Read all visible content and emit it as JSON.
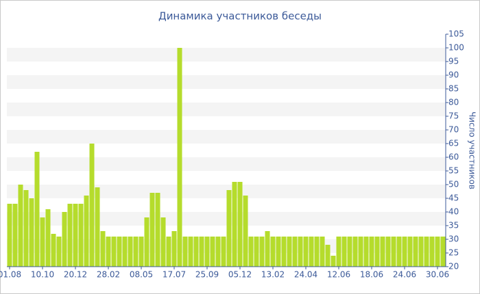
{
  "chart_data": {
    "type": "bar",
    "title": "Динамика участников беседы",
    "y_axis_label": "Число участников",
    "categories": [
      "01.08",
      null,
      null,
      null,
      null,
      null,
      "10.10",
      null,
      null,
      null,
      null,
      null,
      "20.12",
      null,
      null,
      null,
      null,
      null,
      "28.02",
      null,
      null,
      null,
      null,
      null,
      "08.05",
      null,
      null,
      null,
      null,
      null,
      "17.07",
      null,
      null,
      null,
      null,
      null,
      "25.09",
      null,
      null,
      null,
      null,
      null,
      "05.12",
      null,
      null,
      null,
      null,
      null,
      "13.02",
      null,
      null,
      null,
      null,
      null,
      "24.04",
      null,
      null,
      null,
      null,
      null,
      "12.06",
      null,
      null,
      null,
      null,
      null,
      "18.06",
      null,
      null,
      null,
      null,
      null,
      "24.06",
      null,
      null,
      null,
      null,
      null,
      "30.06",
      null
    ],
    "values": [
      43,
      43,
      50,
      48,
      45,
      62,
      38,
      41,
      32,
      31,
      40,
      43,
      43,
      43,
      46,
      65,
      49,
      33,
      31,
      31,
      31,
      31,
      31,
      31,
      31,
      38,
      47,
      47,
      38,
      31,
      33,
      100,
      31,
      31,
      31,
      31,
      31,
      31,
      31,
      31,
      48,
      51,
      51,
      46,
      31,
      31,
      31,
      33,
      31,
      31,
      31,
      31,
      31,
      31,
      31,
      31,
      31,
      31,
      28,
      24,
      31,
      31,
      31,
      31,
      31,
      31,
      31,
      31,
      31,
      31,
      31,
      31,
      31,
      31,
      31,
      31,
      31,
      31,
      31,
      31
    ],
    "color": "#b5dc2c",
    "ylim": [
      20,
      105
    ],
    "yticks": [
      20,
      25,
      30,
      35,
      40,
      45,
      50,
      55,
      60,
      65,
      70,
      75,
      80,
      85,
      90,
      95,
      100,
      105
    ],
    "grid": true
  }
}
